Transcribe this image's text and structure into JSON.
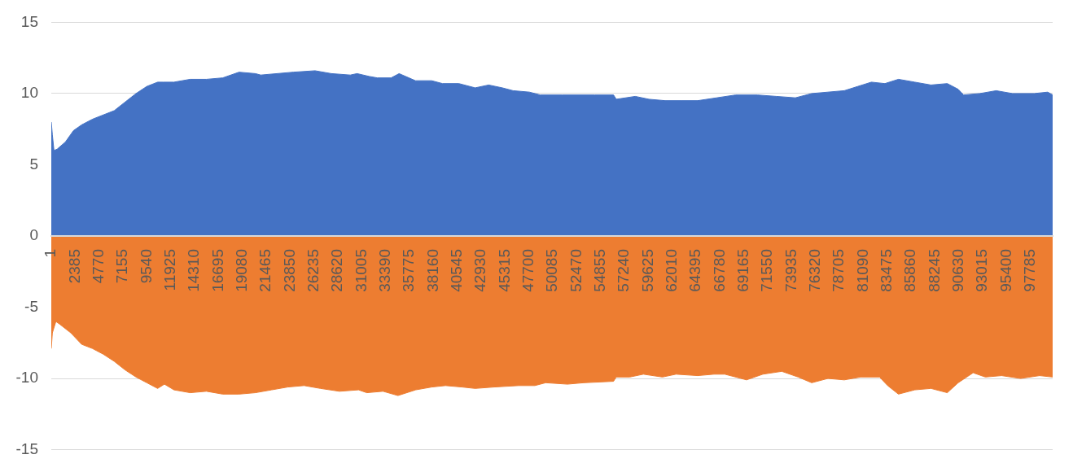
{
  "chart_data": {
    "type": "area",
    "xlim": [
      1,
      100000
    ],
    "xticks": [
      1,
      2385,
      4770,
      7155,
      9540,
      11925,
      14310,
      16695,
      19080,
      21465,
      23850,
      26235,
      28620,
      31005,
      33390,
      35775,
      38160,
      40545,
      42930,
      45315,
      47700,
      50085,
      52470,
      54855,
      57240,
      59625,
      62010,
      64395,
      66780,
      69165,
      71550,
      73935,
      76320,
      78705,
      81090,
      83475,
      85860,
      88245,
      90630,
      93015,
      95400,
      97785
    ],
    "ylim": [
      -15,
      15
    ],
    "yticks": [
      -15,
      -10,
      -5,
      0,
      5,
      10,
      15
    ],
    "grid": "y",
    "series": [
      {
        "color": "#4472c4",
        "x": [
          1,
          110,
          270,
          590,
          1410,
          2220,
          3030,
          4120,
          5200,
          6290,
          7370,
          8460,
          9540,
          10620,
          11160,
          12250,
          13870,
          15500,
          17120,
          18750,
          20380,
          20920,
          24170,
          26340,
          27970,
          29860,
          30540,
          31760,
          32570,
          33930,
          34740,
          36370,
          37990,
          39070,
          40700,
          42330,
          43680,
          45040,
          46120,
          47750,
          48830,
          51000,
          54250,
          56150,
          56420,
          58320,
          59680,
          61300,
          62930,
          64550,
          66450,
          68340,
          70510,
          72410,
          74310,
          75940,
          77560,
          79190,
          80540,
          81900,
          83250,
          84600,
          86230,
          87850,
          89480,
          90570,
          91110,
          92730,
          94360,
          95990,
          98160,
          99510,
          100000
        ],
        "values": [
          8.0,
          7.1,
          6.0,
          6.1,
          6.6,
          7.4,
          7.8,
          8.2,
          8.5,
          8.8,
          9.4,
          10.0,
          10.5,
          10.8,
          10.8,
          10.8,
          11.0,
          11.0,
          11.1,
          11.5,
          11.4,
          11.3,
          11.5,
          11.6,
          11.4,
          11.3,
          11.4,
          11.2,
          11.1,
          11.1,
          11.4,
          10.9,
          10.9,
          10.7,
          10.7,
          10.4,
          10.6,
          10.4,
          10.2,
          10.1,
          9.9,
          9.9,
          9.9,
          9.9,
          9.6,
          9.8,
          9.6,
          9.5,
          9.5,
          9.5,
          9.7,
          9.9,
          9.9,
          9.8,
          9.7,
          10.0,
          10.1,
          10.2,
          10.5,
          10.8,
          10.7,
          11.0,
          10.8,
          10.6,
          10.7,
          10.3,
          9.9,
          10.0,
          10.2,
          10.0,
          10.0,
          10.1,
          9.9
        ]
      },
      {
        "color": "#ed7d31",
        "x": [
          1,
          110,
          460,
          860,
          1950,
          3030,
          4120,
          5200,
          6290,
          7370,
          8460,
          9540,
          10620,
          11300,
          12250,
          13870,
          15500,
          17120,
          18750,
          20380,
          22000,
          23630,
          25250,
          26880,
          28780,
          30680,
          31510,
          33130,
          34620,
          36390,
          38010,
          39370,
          41000,
          42330,
          44230,
          46670,
          48290,
          49380,
          51550,
          53170,
          56150,
          56420,
          57770,
          59130,
          61030,
          62390,
          64550,
          66180,
          67260,
          69430,
          71060,
          72950,
          74580,
          75940,
          77560,
          79190,
          80820,
          82710,
          83520,
          84600,
          86230,
          87850,
          89480,
          90570,
          92060,
          93280,
          94900,
          96800,
          98700,
          100000
        ],
        "values": [
          -7.9,
          -6.8,
          -6.0,
          -6.2,
          -6.8,
          -7.6,
          -7.9,
          -8.3,
          -8.8,
          -9.4,
          -9.9,
          -10.3,
          -10.7,
          -10.4,
          -10.8,
          -11.0,
          -10.9,
          -11.1,
          -11.1,
          -11.0,
          -10.8,
          -10.6,
          -10.5,
          -10.7,
          -10.9,
          -10.8,
          -11.0,
          -10.9,
          -11.2,
          -10.8,
          -10.6,
          -10.5,
          -10.6,
          -10.7,
          -10.6,
          -10.5,
          -10.5,
          -10.3,
          -10.4,
          -10.3,
          -10.2,
          -9.9,
          -9.9,
          -9.7,
          -9.9,
          -9.7,
          -9.8,
          -9.7,
          -9.7,
          -10.1,
          -9.7,
          -9.5,
          -9.9,
          -10.3,
          -10.0,
          -10.1,
          -9.9,
          -9.9,
          -10.5,
          -11.1,
          -10.8,
          -10.7,
          -11.0,
          -10.3,
          -9.6,
          -9.9,
          -9.8,
          -10.0,
          -9.8,
          -9.9
        ]
      }
    ]
  }
}
